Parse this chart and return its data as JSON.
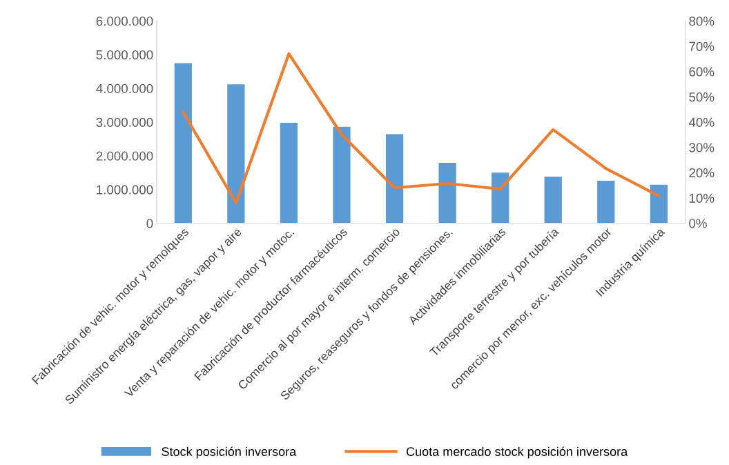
{
  "chart_data": {
    "type": "bar",
    "categories": [
      "Fabricación de vehic. motor y remolques",
      "Suministro energía eléctrica, gas, vapor y aire",
      "Venta y reparación de vehic. motor y motoc.",
      "Fabricación de productor farmacéuticos",
      "Comercio al por mayor e interm. comercio",
      "Seguros, reaseguros y fondos de pensiones.",
      "Actividades inmobiliarias",
      "Transporte terrestre y por tubería",
      "comercio por menor, exc. vehículos motor",
      "Industria química"
    ],
    "series": [
      {
        "name": "Stock posición inversora",
        "color": "#5b9bd5",
        "values": [
          4750000,
          4120000,
          2980000,
          2860000,
          2640000,
          1790000,
          1500000,
          1380000,
          1260000,
          1140000
        ]
      },
      {
        "name": "Cuota mercado stock posición inversora",
        "type": "line",
        "axis": "y2",
        "color": "#ed7d31",
        "values": [
          44,
          8,
          67,
          35,
          14,
          15.7,
          13.5,
          37,
          21.6,
          10.8
        ]
      }
    ],
    "ylim": [
      0,
      6000000
    ],
    "yticks": [
      {
        "value": 0,
        "label": "0"
      },
      {
        "value": 1000000,
        "label": "1.000.000"
      },
      {
        "value": 2000000,
        "label": "2.000.000"
      },
      {
        "value": 3000000,
        "label": "3.000.000"
      },
      {
        "value": 4000000,
        "label": "4.000.000"
      },
      {
        "value": 5000000,
        "label": "5.000.000"
      },
      {
        "value": 6000000,
        "label": "6.000.000"
      }
    ],
    "y2lim": [
      0,
      80
    ],
    "y2ticks": [
      {
        "value": 0,
        "label": "0%"
      },
      {
        "value": 10,
        "label": "10%"
      },
      {
        "value": 20,
        "label": "20%"
      },
      {
        "value": 30,
        "label": "30%"
      },
      {
        "value": 40,
        "label": "40%"
      },
      {
        "value": 50,
        "label": "50%"
      },
      {
        "value": 60,
        "label": "60%"
      },
      {
        "value": 70,
        "label": "70%"
      },
      {
        "value": 80,
        "label": "80%"
      }
    ],
    "grid": false,
    "legend": "bottom",
    "marker": "none",
    "line_style": "solid"
  }
}
